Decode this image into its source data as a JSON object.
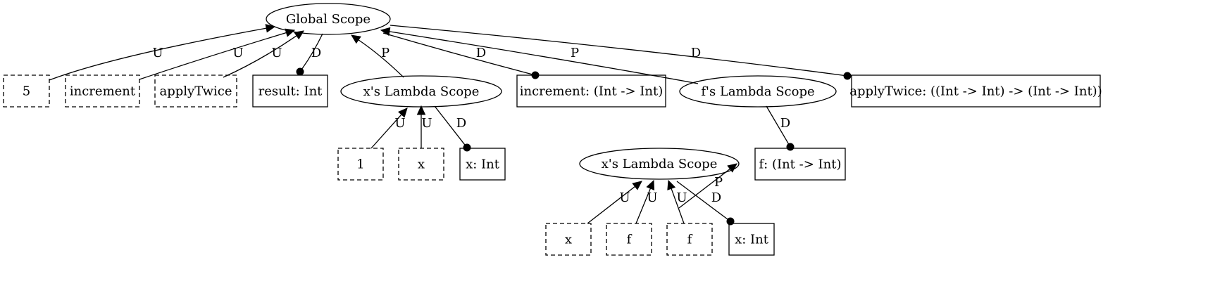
{
  "diagram": {
    "nodes": [
      {
        "id": "global",
        "shape": "ellipse",
        "label": "Global Scope"
      },
      {
        "id": "lit5",
        "shape": "dashed-box",
        "label": "5"
      },
      {
        "id": "use_increment",
        "shape": "dashed-box",
        "label": "increment"
      },
      {
        "id": "use_applyTwice",
        "shape": "dashed-box",
        "label": "applyTwice"
      },
      {
        "id": "decl_result",
        "shape": "box",
        "label": "result: Int"
      },
      {
        "id": "xlambda1",
        "shape": "ellipse",
        "label": "x's Lambda Scope"
      },
      {
        "id": "decl_increment",
        "shape": "box",
        "label": "increment: (Int -> Int)"
      },
      {
        "id": "flambda",
        "shape": "ellipse",
        "label": "f's Lambda Scope"
      },
      {
        "id": "decl_applyTwice",
        "shape": "box",
        "label": "applyTwice: ((Int -> Int) -> (Int -> Int))"
      },
      {
        "id": "lit1",
        "shape": "dashed-box",
        "label": "1"
      },
      {
        "id": "use_x1",
        "shape": "dashed-box",
        "label": "x"
      },
      {
        "id": "decl_x1",
        "shape": "box",
        "label": "x: Int"
      },
      {
        "id": "xlambda2",
        "shape": "ellipse",
        "label": "x's Lambda Scope"
      },
      {
        "id": "decl_f",
        "shape": "box",
        "label": "f: (Int -> Int)"
      },
      {
        "id": "use_x2",
        "shape": "dashed-box",
        "label": "x"
      },
      {
        "id": "use_f1",
        "shape": "dashed-box",
        "label": "f"
      },
      {
        "id": "use_f2",
        "shape": "dashed-box",
        "label": "f"
      },
      {
        "id": "decl_x2",
        "shape": "box",
        "label": "x: Int"
      }
    ],
    "edges": [
      {
        "from": "lit5",
        "to": "global",
        "label": "U",
        "head": "arrow"
      },
      {
        "from": "use_increment",
        "to": "global",
        "label": "U",
        "head": "arrow"
      },
      {
        "from": "use_applyTwice",
        "to": "global",
        "label": "U",
        "head": "arrow"
      },
      {
        "from": "global",
        "to": "decl_result",
        "label": "D",
        "head": "dot"
      },
      {
        "from": "xlambda1",
        "to": "global",
        "label": "P",
        "head": "arrow"
      },
      {
        "from": "global",
        "to": "decl_increment",
        "label": "D",
        "head": "dot"
      },
      {
        "from": "flambda",
        "to": "global",
        "label": "P",
        "head": "arrow"
      },
      {
        "from": "global",
        "to": "decl_applyTwice",
        "label": "D",
        "head": "dot"
      },
      {
        "from": "lit1",
        "to": "xlambda1",
        "label": "U",
        "head": "arrow"
      },
      {
        "from": "use_x1",
        "to": "xlambda1",
        "label": "U",
        "head": "arrow"
      },
      {
        "from": "xlambda1",
        "to": "decl_x1",
        "label": "D",
        "head": "dot"
      },
      {
        "from": "xlambda2",
        "to": "flambda",
        "label": "P",
        "head": "arrow"
      },
      {
        "from": "flambda",
        "to": "decl_f",
        "label": "D",
        "head": "dot"
      },
      {
        "from": "use_x2",
        "to": "xlambda2",
        "label": "U",
        "head": "arrow"
      },
      {
        "from": "use_f1",
        "to": "xlambda2",
        "label": "U",
        "head": "arrow"
      },
      {
        "from": "use_f2",
        "to": "xlambda2",
        "label": "U",
        "head": "arrow"
      },
      {
        "from": "xlambda2",
        "to": "decl_x2",
        "label": "D",
        "head": "dot"
      }
    ]
  }
}
